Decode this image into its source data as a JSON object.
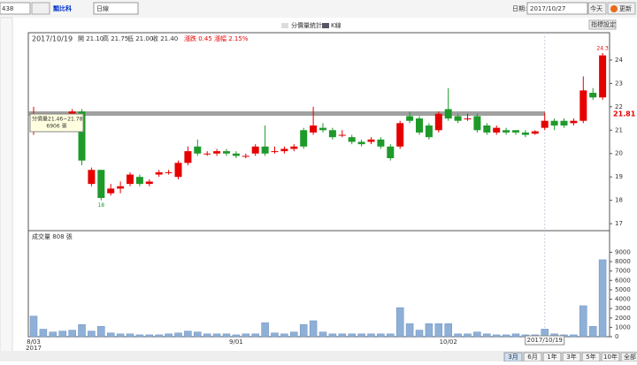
{
  "toolbar": {
    "code": "438",
    "name": "類比科",
    "period": "日線",
    "date_label": "日期:",
    "date": "2017/10/27",
    "today": "今天",
    "refresh": "更新",
    "indicator": "指標設定"
  },
  "chart_data": {
    "type": "candlestick",
    "date": "2017/10/19",
    "info": [
      "開 21.10",
      "高 21.75",
      "低 21.00",
      "收 21.40"
    ],
    "change": [
      "漲跌 0.45",
      "漲幅 2.15%"
    ],
    "legend": [
      "分價量統計",
      "K線"
    ],
    "tooltip": [
      "分價量21.46~21.78",
      "6906 張"
    ],
    "cursor_price": "21.81",
    "high_label": "24.3",
    "low_label": "18",
    "cursor_date": "2017/10/19",
    "year_label": "2017",
    "categories": [
      "8/03",
      null,
      null,
      null,
      null,
      null,
      null,
      null,
      null,
      null,
      null,
      null,
      null,
      null,
      null,
      null,
      null,
      null,
      null,
      null,
      null,
      "9/01",
      null,
      null,
      null,
      null,
      null,
      null,
      null,
      null,
      null,
      null,
      null,
      null,
      null,
      null,
      null,
      null,
      null,
      null,
      null,
      null,
      null,
      "10/02",
      null,
      null,
      null,
      null,
      null,
      null,
      null,
      null,
      null,
      null,
      null,
      null,
      null,
      null,
      null,
      null
    ],
    "open": [
      21.2,
      21.6,
      21.5,
      21.4,
      21.6,
      21.8,
      18.7,
      19.3,
      18.3,
      18.5,
      18.7,
      19.0,
      18.7,
      19.1,
      19.2,
      19.0,
      19.6,
      20.3,
      20.0,
      20.0,
      20.1,
      20.0,
      19.9,
      20.0,
      20.3,
      20.1,
      20.1,
      20.2,
      21.0,
      20.9,
      21.1,
      21.0,
      20.8,
      20.7,
      20.5,
      20.5,
      20.6,
      20.3,
      20.3,
      21.6,
      21.5,
      21.2,
      21.0,
      21.9,
      21.6,
      21.5,
      21.6,
      21.2,
      20.9,
      21.0,
      21.0,
      20.9,
      20.85,
      21.1,
      21.4,
      21.4,
      21.3,
      21.4,
      22.6,
      22.4
    ],
    "high": [
      22.0,
      21.7,
      21.6,
      21.7,
      21.9,
      21.9,
      19.4,
      19.3,
      18.7,
      18.8,
      19.2,
      19.1,
      18.9,
      19.3,
      19.3,
      19.7,
      20.3,
      20.6,
      20.1,
      20.2,
      20.2,
      20.1,
      20.0,
      20.4,
      21.2,
      20.3,
      20.3,
      20.4,
      21.1,
      22.0,
      21.3,
      21.1,
      21.0,
      20.8,
      20.6,
      20.7,
      20.7,
      20.4,
      21.4,
      21.8,
      21.6,
      21.3,
      21.8,
      22.8,
      21.7,
      21.7,
      21.7,
      21.3,
      21.2,
      21.1,
      21.0,
      21.0,
      21.0,
      21.75,
      21.5,
      21.5,
      21.5,
      23.3,
      22.8,
      24.3
    ],
    "low": [
      20.8,
      21.3,
      21.3,
      21.3,
      21.5,
      19.5,
      18.6,
      18.0,
      18.2,
      18.3,
      18.6,
      18.6,
      18.6,
      19.0,
      19.1,
      18.9,
      19.5,
      19.9,
      19.9,
      19.9,
      19.9,
      19.8,
      19.8,
      19.9,
      19.9,
      20.0,
      20.0,
      20.1,
      20.2,
      20.8,
      20.9,
      20.6,
      20.7,
      20.4,
      20.3,
      20.4,
      20.2,
      19.7,
      20.2,
      21.3,
      20.8,
      20.6,
      20.9,
      21.4,
      21.3,
      21.4,
      20.9,
      20.8,
      20.8,
      20.8,
      20.8,
      20.7,
      20.8,
      21.0,
      21.0,
      21.1,
      21.2,
      21.3,
      22.3,
      22.3
    ],
    "close": [
      21.6,
      21.5,
      21.4,
      21.6,
      21.8,
      19.7,
      19.3,
      18.1,
      18.5,
      18.6,
      19.1,
      18.7,
      18.8,
      19.2,
      19.2,
      19.6,
      20.1,
      20.0,
      20.0,
      20.1,
      20.0,
      19.9,
      19.9,
      20.3,
      20.0,
      20.1,
      20.2,
      20.3,
      20.3,
      21.2,
      21.0,
      20.7,
      20.8,
      20.5,
      20.4,
      20.6,
      20.3,
      19.8,
      21.3,
      21.4,
      20.9,
      20.7,
      21.7,
      21.5,
      21.4,
      21.5,
      21.0,
      20.9,
      21.1,
      20.9,
      20.9,
      20.8,
      20.95,
      21.4,
      21.2,
      21.2,
      21.4,
      22.7,
      22.4,
      24.2
    ],
    "up_color": "#e60000",
    "down_color": "#1e9a2a",
    "ylim": [
      16.7,
      25.17
    ],
    "yticks": [
      17,
      18,
      19,
      20,
      21,
      22,
      23,
      24
    ],
    "volume": {
      "title": "成交量 808 張",
      "color": "#8fb0d6",
      "values": [
        2200,
        800,
        500,
        600,
        700,
        1300,
        600,
        1100,
        400,
        300,
        300,
        200,
        200,
        200,
        300,
        400,
        600,
        500,
        300,
        300,
        300,
        200,
        300,
        300,
        1500,
        400,
        300,
        500,
        1300,
        1700,
        500,
        300,
        300,
        300,
        300,
        300,
        300,
        300,
        3100,
        1400,
        700,
        1400,
        1400,
        1400,
        300,
        300,
        500,
        300,
        200,
        200,
        300,
        200,
        200,
        808,
        300,
        200,
        200,
        3300,
        1100,
        8200
      ],
      "ylim": [
        0,
        11300
      ],
      "yticks": [
        0,
        1000,
        2000,
        3000,
        4000,
        5000,
        6000,
        7000,
        8000,
        9000
      ]
    }
  },
  "footer": {
    "buttons": [
      "3月",
      "6月",
      "1年",
      "3年",
      "5年",
      "10年",
      "全部"
    ]
  }
}
